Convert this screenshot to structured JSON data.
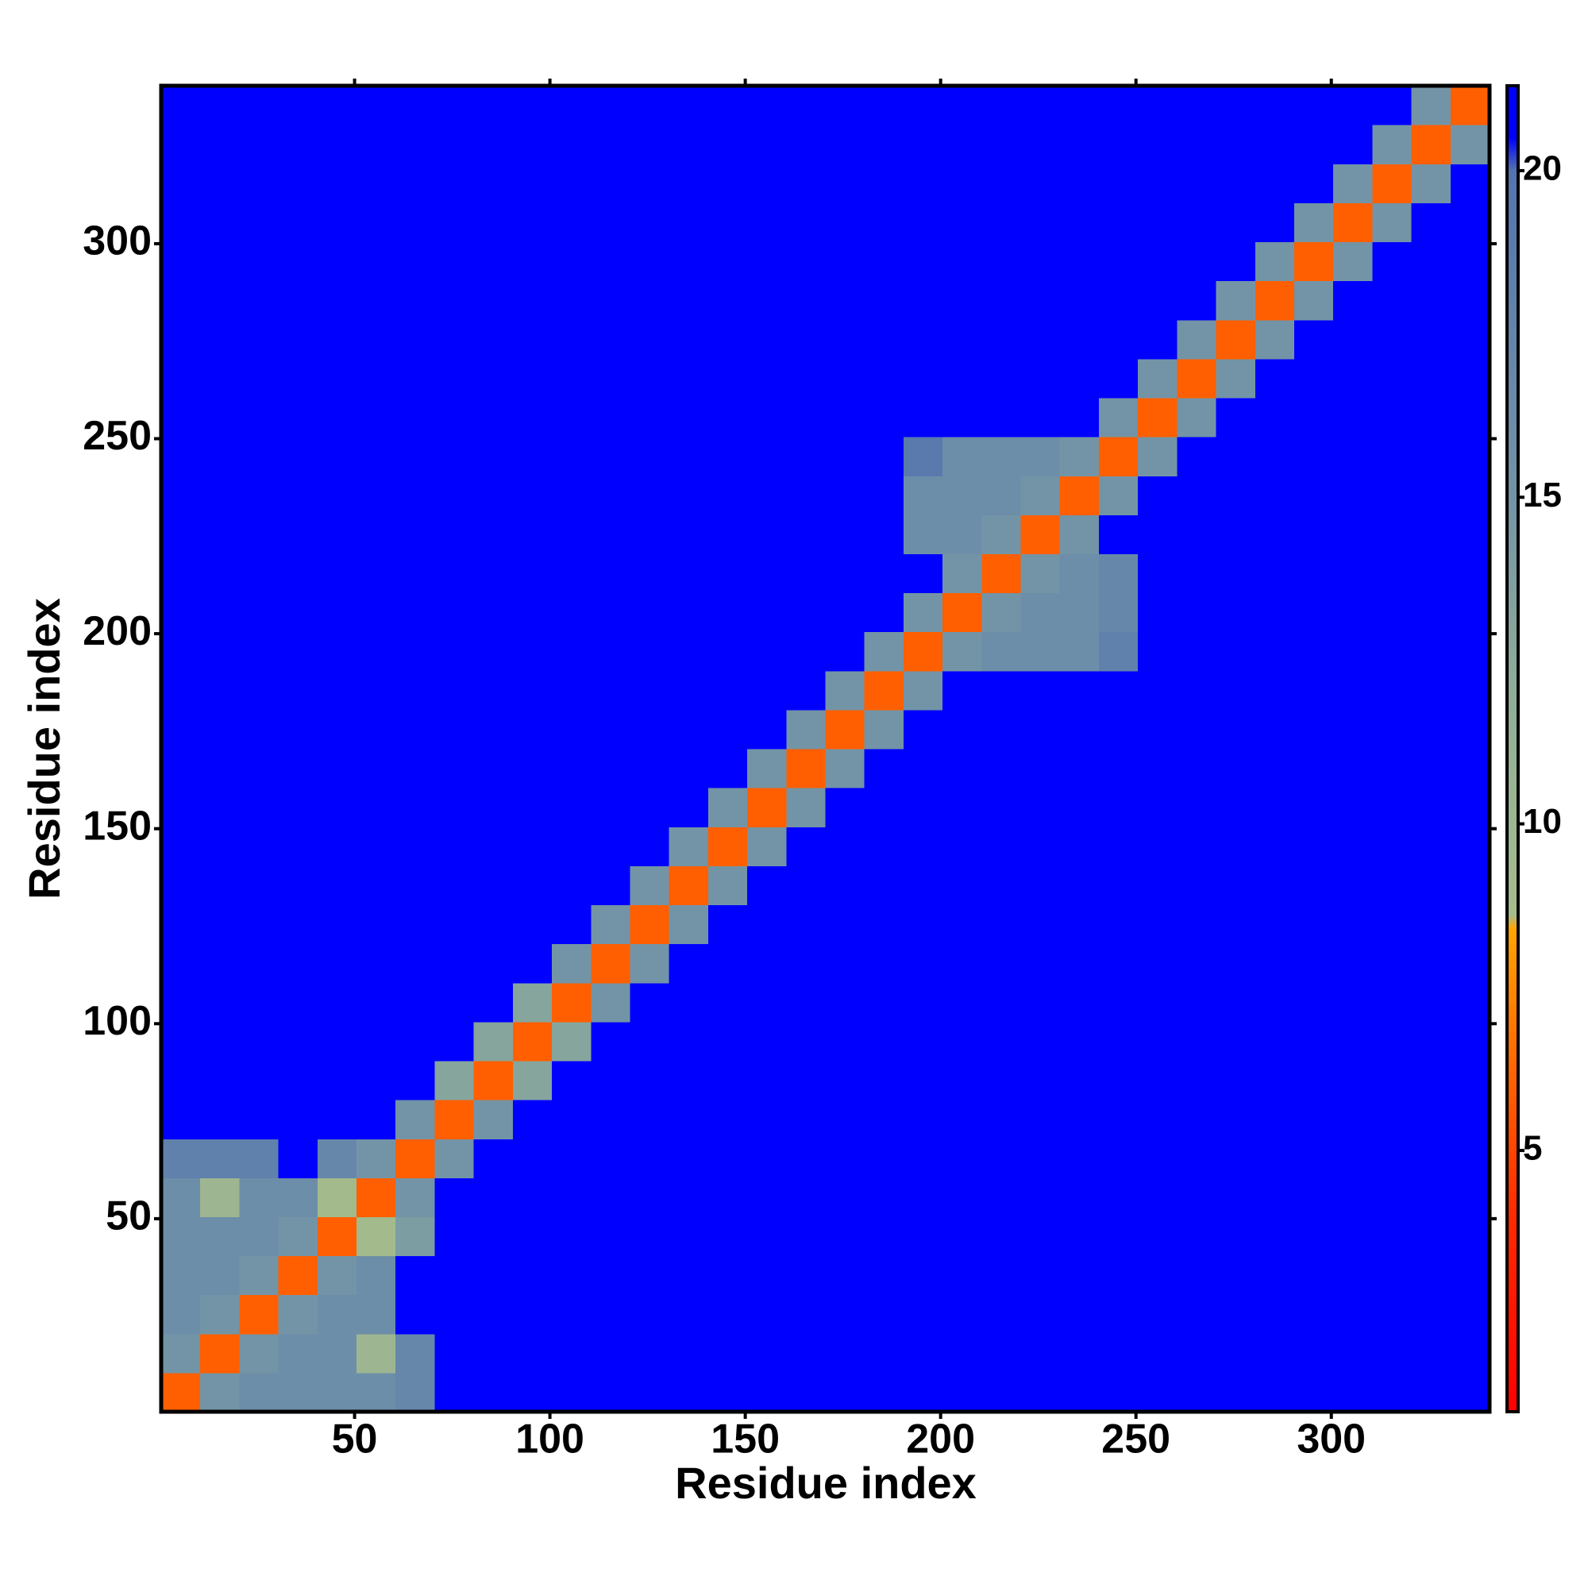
{
  "chart_data": {
    "type": "heatmap",
    "xlabel": "Residue index",
    "ylabel": "Residue index",
    "xlim": [
      0.5,
      340.5
    ],
    "ylim": [
      0.5,
      340.5
    ],
    "xticks": [
      50,
      100,
      150,
      200,
      250,
      300
    ],
    "yticks": [
      50,
      100,
      150,
      200,
      250,
      300
    ],
    "xbins": [
      0.5,
      10.5,
      20.5,
      30.5,
      40.5,
      50.5,
      60.5,
      70.5,
      80.5,
      90.5,
      100.5,
      110.5,
      120.5,
      130.5,
      140.5,
      150.5,
      160.5,
      170.5,
      180.5,
      190.5,
      200.5,
      210.5,
      220.5,
      230.5,
      240.5,
      250.5,
      260.5,
      270.5,
      280.5,
      290.5,
      300.5,
      310.5,
      320.5,
      330.5,
      340.5
    ],
    "ybins": [
      0.5,
      10.5,
      20.5,
      30.5,
      40.5,
      50.5,
      60.5,
      70.5,
      80.5,
      90.5,
      100.5,
      110.5,
      120.5,
      130.5,
      140.5,
      150.5,
      160.5,
      170.5,
      180.5,
      190.5,
      200.5,
      210.5,
      220.5,
      230.5,
      240.5,
      250.5,
      260.5,
      270.5,
      280.5,
      290.5,
      300.5,
      310.5,
      320.5,
      330.5,
      340.5
    ],
    "clim": [
      1,
      21.3
    ],
    "cticks": [
      5,
      10,
      15,
      20
    ],
    "colorscale": [
      {
        "value": 1,
        "color": "#ff0000"
      },
      {
        "value": 4,
        "color": "#ff2a00"
      },
      {
        "value": 7,
        "color": "#ff7a00"
      },
      {
        "value": 8.4,
        "color": "#ffa500"
      },
      {
        "value": 8.6,
        "color": "#a6bc8c"
      },
      {
        "value": 12,
        "color": "#8fae98"
      },
      {
        "value": 15,
        "color": "#7394a6"
      },
      {
        "value": 20,
        "color": "#5474b0"
      },
      {
        "value": 20.5,
        "color": "#0000ff"
      },
      {
        "value": 21.3,
        "color": "#0000ff"
      }
    ],
    "z": [
      [
        6,
        15,
        16,
        16,
        16,
        16,
        17,
        21,
        21,
        21,
        21,
        21,
        21,
        21,
        21,
        21,
        21,
        21,
        21,
        21,
        21,
        21,
        21,
        21,
        21,
        21,
        21,
        21,
        21,
        21,
        21,
        21,
        21,
        21
      ],
      [
        15,
        6,
        15,
        16,
        16,
        10,
        17,
        21,
        21,
        21,
        21,
        21,
        21,
        21,
        21,
        21,
        21,
        21,
        21,
        21,
        21,
        21,
        21,
        21,
        21,
        21,
        21,
        21,
        21,
        21,
        21,
        21,
        21,
        21
      ],
      [
        16,
        15,
        6,
        15,
        16,
        16,
        21,
        21,
        21,
        21,
        21,
        21,
        21,
        21,
        21,
        21,
        21,
        21,
        21,
        21,
        21,
        21,
        21,
        21,
        21,
        21,
        21,
        21,
        21,
        21,
        21,
        21,
        21,
        21
      ],
      [
        16,
        16,
        15,
        6,
        15,
        16,
        21,
        21,
        21,
        21,
        21,
        21,
        21,
        21,
        21,
        21,
        21,
        21,
        21,
        21,
        21,
        21,
        21,
        21,
        21,
        21,
        21,
        21,
        21,
        21,
        21,
        21,
        21,
        21
      ],
      [
        16,
        16,
        16,
        15,
        6,
        9,
        14,
        21,
        21,
        21,
        21,
        21,
        21,
        21,
        21,
        21,
        21,
        21,
        21,
        21,
        21,
        21,
        21,
        21,
        21,
        21,
        21,
        21,
        21,
        21,
        21,
        21,
        21,
        21
      ],
      [
        16,
        10,
        16,
        16,
        9,
        6,
        15,
        21,
        21,
        21,
        21,
        21,
        21,
        21,
        21,
        21,
        21,
        21,
        21,
        21,
        21,
        21,
        21,
        21,
        21,
        21,
        21,
        21,
        21,
        21,
        21,
        21,
        21,
        21
      ],
      [
        18,
        18,
        18,
        21,
        17,
        15,
        6,
        15,
        21,
        21,
        21,
        21,
        21,
        21,
        21,
        21,
        21,
        21,
        21,
        21,
        21,
        21,
        21,
        21,
        21,
        21,
        21,
        21,
        21,
        21,
        21,
        21,
        21,
        21
      ],
      [
        21,
        21,
        21,
        21,
        21,
        21,
        15,
        6,
        15,
        21,
        21,
        21,
        21,
        21,
        21,
        21,
        21,
        21,
        21,
        21,
        21,
        21,
        21,
        21,
        21,
        21,
        21,
        21,
        21,
        21,
        21,
        21,
        21,
        21
      ],
      [
        21,
        21,
        21,
        21,
        21,
        21,
        21,
        13,
        6,
        13,
        21,
        21,
        21,
        21,
        21,
        21,
        21,
        21,
        21,
        21,
        21,
        21,
        21,
        21,
        21,
        21,
        21,
        21,
        21,
        21,
        21,
        21,
        21,
        21
      ],
      [
        21,
        21,
        21,
        21,
        21,
        21,
        21,
        21,
        13,
        6,
        13,
        21,
        21,
        21,
        21,
        21,
        21,
        21,
        21,
        21,
        21,
        21,
        21,
        21,
        21,
        21,
        21,
        21,
        21,
        21,
        21,
        21,
        21,
        21
      ],
      [
        21,
        21,
        21,
        21,
        21,
        21,
        21,
        21,
        21,
        13,
        6,
        15,
        21,
        21,
        21,
        21,
        21,
        21,
        21,
        21,
        21,
        21,
        21,
        21,
        21,
        21,
        21,
        21,
        21,
        21,
        21,
        21,
        21,
        21
      ],
      [
        21,
        21,
        21,
        21,
        21,
        21,
        21,
        21,
        21,
        21,
        15,
        6,
        15,
        21,
        21,
        21,
        21,
        21,
        21,
        21,
        21,
        21,
        21,
        21,
        21,
        21,
        21,
        21,
        21,
        21,
        21,
        21,
        21,
        21
      ],
      [
        21,
        21,
        21,
        21,
        21,
        21,
        21,
        21,
        21,
        21,
        21,
        15,
        6,
        15,
        21,
        21,
        21,
        21,
        21,
        21,
        21,
        21,
        21,
        21,
        21,
        21,
        21,
        21,
        21,
        21,
        21,
        21,
        21,
        21
      ],
      [
        21,
        21,
        21,
        21,
        21,
        21,
        21,
        21,
        21,
        21,
        21,
        21,
        15,
        6,
        15,
        21,
        21,
        21,
        21,
        21,
        21,
        21,
        21,
        21,
        21,
        21,
        21,
        21,
        21,
        21,
        21,
        21,
        21,
        21
      ],
      [
        21,
        21,
        21,
        21,
        21,
        21,
        21,
        21,
        21,
        21,
        21,
        21,
        21,
        15,
        6,
        15,
        21,
        21,
        21,
        21,
        21,
        21,
        21,
        21,
        21,
        21,
        21,
        21,
        21,
        21,
        21,
        21,
        21,
        21
      ],
      [
        21,
        21,
        21,
        21,
        21,
        21,
        21,
        21,
        21,
        21,
        21,
        21,
        21,
        21,
        15,
        6,
        15,
        21,
        21,
        21,
        21,
        21,
        21,
        21,
        21,
        21,
        21,
        21,
        21,
        21,
        21,
        21,
        21,
        21
      ],
      [
        21,
        21,
        21,
        21,
        21,
        21,
        21,
        21,
        21,
        21,
        21,
        21,
        21,
        21,
        21,
        15,
        6,
        15,
        21,
        21,
        21,
        21,
        21,
        21,
        21,
        21,
        21,
        21,
        21,
        21,
        21,
        21,
        21,
        21
      ],
      [
        21,
        21,
        21,
        21,
        21,
        21,
        21,
        21,
        21,
        21,
        21,
        21,
        21,
        21,
        21,
        21,
        15,
        6,
        15,
        21,
        21,
        21,
        21,
        21,
        21,
        21,
        21,
        21,
        21,
        21,
        21,
        21,
        21,
        21
      ],
      [
        21,
        21,
        21,
        21,
        21,
        21,
        21,
        21,
        21,
        21,
        21,
        21,
        21,
        21,
        21,
        21,
        21,
        15,
        6,
        15,
        21,
        21,
        21,
        21,
        21,
        21,
        21,
        21,
        21,
        21,
        21,
        21,
        21,
        21
      ],
      [
        21,
        21,
        21,
        21,
        21,
        21,
        21,
        21,
        21,
        21,
        21,
        21,
        21,
        21,
        21,
        21,
        21,
        21,
        15,
        6,
        15,
        16,
        16,
        16,
        18,
        21,
        21,
        21,
        21,
        21,
        21,
        21,
        21,
        21
      ],
      [
        21,
        21,
        21,
        21,
        21,
        21,
        21,
        21,
        21,
        21,
        21,
        21,
        21,
        21,
        21,
        21,
        21,
        21,
        21,
        15,
        6,
        15,
        16,
        16,
        17,
        21,
        21,
        21,
        21,
        21,
        21,
        21,
        21,
        21
      ],
      [
        21,
        21,
        21,
        21,
        21,
        21,
        21,
        21,
        21,
        21,
        21,
        21,
        21,
        21,
        21,
        21,
        21,
        21,
        21,
        21,
        15,
        6,
        15,
        16,
        17,
        21,
        21,
        21,
        21,
        21,
        21,
        21,
        21,
        21
      ],
      [
        21,
        21,
        21,
        21,
        21,
        21,
        21,
        21,
        21,
        21,
        21,
        21,
        21,
        21,
        21,
        21,
        21,
        21,
        21,
        16,
        16,
        15,
        6,
        15,
        21,
        21,
        21,
        21,
        21,
        21,
        21,
        21,
        21,
        21
      ],
      [
        21,
        21,
        21,
        21,
        21,
        21,
        21,
        21,
        21,
        21,
        21,
        21,
        21,
        21,
        21,
        21,
        21,
        21,
        21,
        16,
        16,
        16,
        15,
        6,
        15,
        21,
        21,
        21,
        21,
        21,
        21,
        21,
        21,
        21
      ],
      [
        21,
        21,
        21,
        21,
        21,
        21,
        21,
        21,
        21,
        21,
        21,
        21,
        21,
        21,
        21,
        21,
        21,
        21,
        21,
        19,
        16,
        16,
        16,
        15,
        6,
        15,
        21,
        21,
        21,
        21,
        21,
        21,
        21,
        21
      ],
      [
        21,
        21,
        21,
        21,
        21,
        21,
        21,
        21,
        21,
        21,
        21,
        21,
        21,
        21,
        21,
        21,
        21,
        21,
        21,
        21,
        21,
        21,
        21,
        21,
        15,
        6,
        15,
        21,
        21,
        21,
        21,
        21,
        21,
        21
      ],
      [
        21,
        21,
        21,
        21,
        21,
        21,
        21,
        21,
        21,
        21,
        21,
        21,
        21,
        21,
        21,
        21,
        21,
        21,
        21,
        21,
        21,
        21,
        21,
        21,
        21,
        15,
        6,
        15,
        21,
        21,
        21,
        21,
        21,
        21
      ],
      [
        21,
        21,
        21,
        21,
        21,
        21,
        21,
        21,
        21,
        21,
        21,
        21,
        21,
        21,
        21,
        21,
        21,
        21,
        21,
        21,
        21,
        21,
        21,
        21,
        21,
        21,
        15,
        6,
        15,
        21,
        21,
        21,
        21,
        21
      ],
      [
        21,
        21,
        21,
        21,
        21,
        21,
        21,
        21,
        21,
        21,
        21,
        21,
        21,
        21,
        21,
        21,
        21,
        21,
        21,
        21,
        21,
        21,
        21,
        21,
        21,
        21,
        21,
        15,
        6,
        15,
        21,
        21,
        21,
        21
      ],
      [
        21,
        21,
        21,
        21,
        21,
        21,
        21,
        21,
        21,
        21,
        21,
        21,
        21,
        21,
        21,
        21,
        21,
        21,
        21,
        21,
        21,
        21,
        21,
        21,
        21,
        21,
        21,
        21,
        15,
        6,
        15,
        21,
        21,
        21
      ],
      [
        21,
        21,
        21,
        21,
        21,
        21,
        21,
        21,
        21,
        21,
        21,
        21,
        21,
        21,
        21,
        21,
        21,
        21,
        21,
        21,
        21,
        21,
        21,
        21,
        21,
        21,
        21,
        21,
        21,
        15,
        6,
        15,
        21,
        21
      ],
      [
        21,
        21,
        21,
        21,
        21,
        21,
        21,
        21,
        21,
        21,
        21,
        21,
        21,
        21,
        21,
        21,
        21,
        21,
        21,
        21,
        21,
        21,
        21,
        21,
        21,
        21,
        21,
        21,
        21,
        21,
        15,
        6,
        15,
        21
      ],
      [
        21,
        21,
        21,
        21,
        21,
        21,
        21,
        21,
        21,
        21,
        21,
        21,
        21,
        21,
        21,
        21,
        21,
        21,
        21,
        21,
        21,
        21,
        21,
        21,
        21,
        21,
        21,
        21,
        21,
        21,
        21,
        15,
        6,
        15
      ],
      [
        21,
        21,
        21,
        21,
        21,
        21,
        21,
        21,
        21,
        21,
        21,
        21,
        21,
        21,
        21,
        21,
        21,
        21,
        21,
        21,
        21,
        21,
        21,
        21,
        21,
        21,
        21,
        21,
        21,
        21,
        21,
        21,
        15,
        6
      ]
    ]
  }
}
